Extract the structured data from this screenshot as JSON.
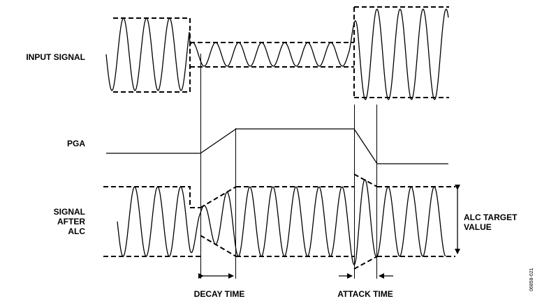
{
  "labels": {
    "input_signal": "INPUT SIGNAL",
    "pga": "PGA",
    "signal_after_alc": [
      "SIGNAL",
      "AFTER",
      "ALC"
    ],
    "alc_target_value": [
      "ALC TARGET",
      "VALUE"
    ],
    "decay_time": "DECAY TIME",
    "attack_time": "ATTACK TIME",
    "figure_id": "06858-021"
  },
  "colors": {
    "stroke": "#000000",
    "background": "#ffffff"
  }
}
